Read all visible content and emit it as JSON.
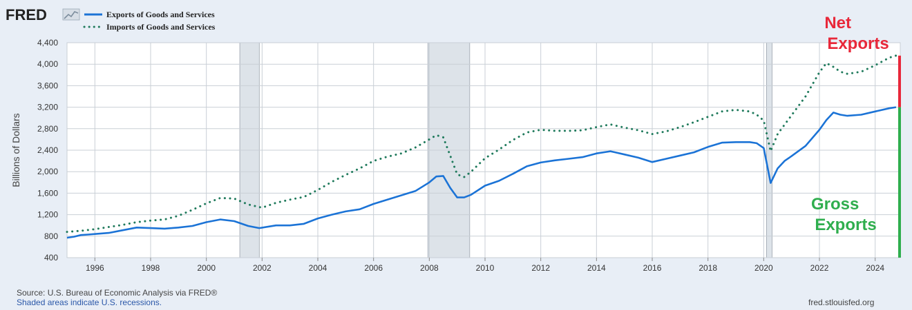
{
  "logo": {
    "text": "FRED"
  },
  "colors": {
    "exports": "#1b73d6",
    "imports": "#1f7a5c",
    "net_exports": "#e8283a",
    "gross_exports": "#2fae4e",
    "recession": "#dde3e9"
  },
  "chart_data": {
    "type": "line",
    "title": "",
    "xlabel": "",
    "ylabel": "Billions of Dollars",
    "xlim": [
      1995.0,
      2024.9
    ],
    "ylim": [
      400,
      4400
    ],
    "yticks": [
      400,
      800,
      1200,
      1600,
      2000,
      2400,
      2800,
      3200,
      3600,
      4000,
      4400
    ],
    "ytick_labels": [
      "400",
      "800",
      "1,200",
      "1,600",
      "2,000",
      "2,400",
      "2,800",
      "3,200",
      "3,600",
      "4,000",
      "4,400"
    ],
    "xticks": [
      1996,
      1998,
      2000,
      2002,
      2004,
      2006,
      2008,
      2010,
      2012,
      2014,
      2016,
      2018,
      2020,
      2022,
      2024
    ],
    "xtick_labels": [
      "1996",
      "1998",
      "2000",
      "2002",
      "2004",
      "2006",
      "2008",
      "2010",
      "2012",
      "2014",
      "2016",
      "2018",
      "2020",
      "2022",
      "2024"
    ],
    "grid": true,
    "legend": "top-left",
    "recessions": [
      [
        2001.2,
        2001.9
      ],
      [
        2007.95,
        2009.45
      ],
      [
        2020.1,
        2020.3
      ]
    ],
    "series": [
      {
        "name": "Exports of Goods and Services",
        "style": "solid",
        "x": [
          1995.0,
          1995.25,
          1995.5,
          1995.75,
          1996.0,
          1996.5,
          1997.0,
          1997.5,
          1998.0,
          1998.5,
          1999.0,
          1999.5,
          2000.0,
          2000.5,
          2001.0,
          2001.5,
          2001.9,
          2002.5,
          2003.0,
          2003.5,
          2004.0,
          2004.5,
          2005.0,
          2005.5,
          2006.0,
          2006.5,
          2007.0,
          2007.5,
          2008.0,
          2008.25,
          2008.5,
          2008.75,
          2009.0,
          2009.25,
          2009.5,
          2010.0,
          2010.5,
          2011.0,
          2011.5,
          2012.0,
          2012.5,
          2013.0,
          2013.5,
          2014.0,
          2014.5,
          2015.0,
          2015.5,
          2016.0,
          2016.5,
          2017.0,
          2017.5,
          2018.0,
          2018.5,
          2019.0,
          2019.5,
          2019.75,
          2020.0,
          2020.25,
          2020.5,
          2020.75,
          2021.0,
          2021.5,
          2022.0,
          2022.25,
          2022.5,
          2022.75,
          2023.0,
          2023.5,
          2024.0,
          2024.5,
          2024.75
        ],
        "y": [
          770,
          790,
          820,
          830,
          840,
          860,
          910,
          960,
          950,
          940,
          960,
          990,
          1060,
          1110,
          1080,
          990,
          950,
          1000,
          1000,
          1030,
          1130,
          1200,
          1260,
          1300,
          1400,
          1480,
          1560,
          1640,
          1800,
          1910,
          1920,
          1700,
          1520,
          1520,
          1570,
          1740,
          1830,
          1960,
          2100,
          2170,
          2210,
          2240,
          2270,
          2340,
          2380,
          2320,
          2260,
          2180,
          2240,
          2300,
          2360,
          2460,
          2540,
          2550,
          2550,
          2530,
          2440,
          1790,
          2060,
          2200,
          2290,
          2480,
          2780,
          2960,
          3100,
          3060,
          3040,
          3060,
          3120,
          3180,
          3200
        ]
      },
      {
        "name": "Imports of Goods and Services",
        "style": "dotted",
        "x": [
          1995.0,
          1995.5,
          1996.0,
          1996.5,
          1997.0,
          1997.5,
          1998.0,
          1998.5,
          1999.0,
          1999.5,
          2000.0,
          2000.5,
          2001.0,
          2001.5,
          2002.0,
          2002.5,
          2003.0,
          2003.5,
          2004.0,
          2004.5,
          2005.0,
          2005.5,
          2006.0,
          2006.5,
          2007.0,
          2007.5,
          2008.0,
          2008.25,
          2008.5,
          2008.75,
          2009.0,
          2009.25,
          2009.5,
          2010.0,
          2010.5,
          2011.0,
          2011.5,
          2012.0,
          2012.5,
          2013.0,
          2013.5,
          2014.0,
          2014.5,
          2015.0,
          2015.5,
          2016.0,
          2016.5,
          2017.0,
          2017.5,
          2018.0,
          2018.5,
          2019.0,
          2019.5,
          2019.75,
          2020.0,
          2020.25,
          2020.5,
          2021.0,
          2021.5,
          2022.0,
          2022.25,
          2022.5,
          2022.75,
          2023.0,
          2023.5,
          2024.0,
          2024.5,
          2024.75
        ],
        "y": [
          880,
          900,
          930,
          970,
          1010,
          1060,
          1090,
          1110,
          1180,
          1290,
          1410,
          1510,
          1500,
          1390,
          1330,
          1420,
          1480,
          1530,
          1660,
          1810,
          1940,
          2060,
          2200,
          2280,
          2340,
          2450,
          2600,
          2680,
          2640,
          2300,
          1950,
          1900,
          2000,
          2250,
          2410,
          2590,
          2730,
          2780,
          2760,
          2760,
          2770,
          2830,
          2880,
          2820,
          2770,
          2700,
          2750,
          2830,
          2920,
          3020,
          3120,
          3150,
          3120,
          3060,
          2950,
          2380,
          2700,
          3050,
          3400,
          3850,
          4020,
          3950,
          3860,
          3820,
          3860,
          3980,
          4120,
          4160
        ]
      }
    ],
    "annotations": [
      {
        "text": "Net Exports",
        "lines": [
          "Net",
          "Exports"
        ],
        "color": "#e8283a"
      },
      {
        "text": "Gross Exports",
        "lines": [
          "Gross",
          "Exports"
        ],
        "color": "#2fae4e"
      }
    ]
  },
  "footer": {
    "source": "Source: U.S. Bureau of Economic Analysis via FRED®",
    "recession_note": "Shaded areas indicate U.S. recessions.",
    "site": "fred.stlouisfed.org"
  }
}
